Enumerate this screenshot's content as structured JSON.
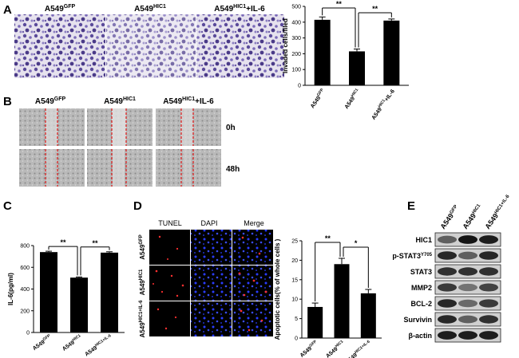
{
  "panels": {
    "A": {
      "letter": "A",
      "image_labels": [
        {
          "base": "A549",
          "sup": "GFP",
          "suffix": ""
        },
        {
          "base": "A549",
          "sup": "HIC1",
          "suffix": ""
        },
        {
          "base": "A549",
          "sup": "HIC1",
          "suffix": "+IL-6"
        }
      ],
      "significance": [
        "**",
        "**"
      ]
    },
    "B": {
      "letter": "B",
      "column_labels": [
        {
          "base": "A549",
          "sup": "GFP",
          "suffix": ""
        },
        {
          "base": "A549",
          "sup": "HIC1",
          "suffix": ""
        },
        {
          "base": "A549",
          "sup": "HIC1",
          "suffix": "+IL-6"
        }
      ],
      "row_labels": [
        "0h",
        "48h"
      ]
    },
    "C": {
      "letter": "C",
      "significance": [
        "**",
        "**"
      ]
    },
    "D": {
      "letter": "D",
      "column_labels": [
        "TUNEL",
        "DAPI",
        "Merge"
      ],
      "row_labels": [
        {
          "base": "A549",
          "sup": "GFP",
          "suffix": ""
        },
        {
          "base": "A549",
          "sup": "HIC1",
          "suffix": ""
        },
        {
          "base": "A549",
          "sup": "HIC1+IL-6",
          "suffix": ""
        }
      ],
      "significance": [
        "**",
        "*"
      ]
    },
    "E": {
      "letter": "E",
      "column_labels": [
        {
          "base": "A549",
          "sup": "GFP",
          "suffix": ""
        },
        {
          "base": "A549",
          "sup": "HIC1",
          "suffix": ""
        },
        {
          "base": "A549",
          "sup": "HIC1+IL-6",
          "suffix": ""
        }
      ],
      "proteins": [
        {
          "name": "HIC1",
          "sup": ""
        },
        {
          "name": "p-STAT3",
          "sup": "Y705"
        },
        {
          "name": "STAT3",
          "sup": ""
        },
        {
          "name": "MMP2",
          "sup": ""
        },
        {
          "name": "BCL-2",
          "sup": ""
        },
        {
          "name": "Survivin",
          "sup": ""
        },
        {
          "name": "β-actin",
          "sup": ""
        }
      ],
      "band_intensity": [
        [
          0.55,
          0.95,
          0.9
        ],
        [
          0.85,
          0.55,
          0.85
        ],
        [
          0.8,
          0.8,
          0.8
        ],
        [
          0.75,
          0.45,
          0.7
        ],
        [
          0.85,
          0.5,
          0.75
        ],
        [
          0.85,
          0.55,
          0.8
        ],
        [
          0.9,
          0.9,
          0.9
        ]
      ]
    }
  },
  "chart_data": [
    {
      "type": "bar",
      "panel": "A",
      "categories": [
        {
          "base": "A549",
          "sup": "GFP",
          "suffix": ""
        },
        {
          "base": "A549",
          "sup": "HIC1",
          "suffix": ""
        },
        {
          "base": "A549",
          "sup": "HIC1",
          "suffix": "+IL-6"
        }
      ],
      "values": [
        415,
        215,
        410
      ],
      "errors": [
        18,
        15,
        10
      ],
      "ylabel": "Invaded cells/filed",
      "ylim": [
        0,
        500
      ],
      "yticks": [
        "0",
        "100",
        "200",
        "300",
        "400",
        "500"
      ],
      "comparisons": [
        {
          "from": 0,
          "to": 1,
          "label": "**"
        },
        {
          "from": 1,
          "to": 2,
          "label": "**"
        }
      ]
    },
    {
      "type": "bar",
      "panel": "C",
      "categories": [
        {
          "base": "A549",
          "sup": "GFP",
          "suffix": ""
        },
        {
          "base": "A549",
          "sup": "HIC1",
          "suffix": ""
        },
        {
          "base": "A549",
          "sup": "HIC1+IL-6",
          "suffix": ""
        }
      ],
      "values": [
        740,
        505,
        735
      ],
      "errors": [
        8,
        6,
        8
      ],
      "ylabel": "IL-6(pg/ml)",
      "ylim": [
        0,
        800
      ],
      "yticks": [
        "0",
        "200",
        "400",
        "600",
        "800"
      ],
      "comparisons": [
        {
          "from": 0,
          "to": 1,
          "label": "**"
        },
        {
          "from": 1,
          "to": 2,
          "label": "**"
        }
      ]
    },
    {
      "type": "bar",
      "panel": "D",
      "categories": [
        {
          "base": "A549",
          "sup": "GFP",
          "suffix": ""
        },
        {
          "base": "A549",
          "sup": "HIC1",
          "suffix": ""
        },
        {
          "base": "A549",
          "sup": "HIC1+IL-6",
          "suffix": ""
        }
      ],
      "values": [
        8,
        19,
        11.5
      ],
      "errors": [
        1,
        1.5,
        1
      ],
      "ylabel": "Apoptotic cells(% of whole cells )",
      "ylim": [
        0,
        25
      ],
      "yticks": [
        "0",
        "5",
        "10",
        "15",
        "20",
        "25"
      ],
      "comparisons": [
        {
          "from": 0,
          "to": 1,
          "label": "**"
        },
        {
          "from": 1,
          "to": 2,
          "label": "*"
        }
      ]
    }
  ]
}
